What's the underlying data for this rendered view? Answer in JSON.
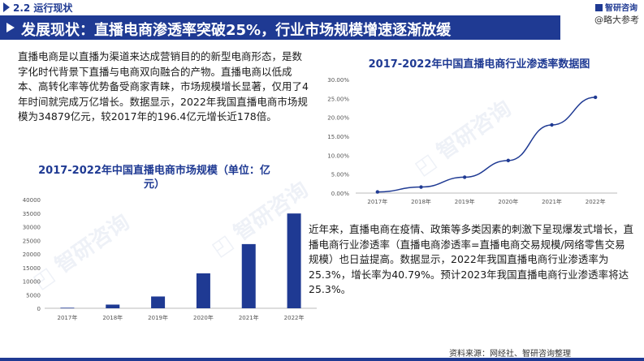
{
  "header": {
    "section": "2.2 运行现状",
    "title": "发展现状：直播电商渗透率突破25%，行业市场规模增速逐渐放缓",
    "watermark": "@略大参考",
    "brand": "智研咨询"
  },
  "intro_text": "直播电商是以直播为渠道来达成营销目的的新型电商形态，是数字化时代背景下直播与电商双向融合的产物。直播电商以低成本、高转化率等优势备受商家青睐，市场规模增长显著，仅用了4年时间就完成万亿增长。数据显示，2022年我国直播电商市场规模为34879亿元，较2017年的196.4亿元增长近178倍。",
  "detail_text": "近年来，直播电商在疫情、政策等多类因素的刺激下呈现爆发式增长，直播电商行业渗透率（直播电商渗透率=直播电商交易规模/网络零售交易规模）也日益提高。数据显示，2022年我国直播电商行业渗透率为25.3%，增长率为40.79%。预计2023年我国直播电商行业渗透率将达25.3%。",
  "source": "资料来源：网经社、智研咨询整理",
  "colors": {
    "primary": "#1f3a93",
    "bar": "#1f3a93",
    "line": "#1f3a93"
  },
  "chart_data": [
    {
      "type": "bar",
      "title": "2017-2022年中国直播电商市场规模（单位：亿元）",
      "categories": [
        "2017年",
        "2018年",
        "2019年",
        "2020年",
        "2021年",
        "2022年"
      ],
      "values": [
        196.4,
        1354,
        4338,
        12850,
        23615,
        34879
      ],
      "ylim": [
        0,
        40000
      ],
      "yticks": [
        0,
        5000,
        10000,
        15000,
        20000,
        25000,
        30000,
        35000,
        40000
      ],
      "xlabel": "",
      "ylabel": ""
    },
    {
      "type": "line",
      "title": "2017-2022年中国直播电商行业渗透率数据图",
      "categories": [
        "2017年",
        "2018年",
        "2019年",
        "2020年",
        "2021年",
        "2022年"
      ],
      "values": [
        0.3,
        1.6,
        4.2,
        8.6,
        18.0,
        25.3
      ],
      "ylim": [
        0,
        30
      ],
      "yticks": [
        "0.00%",
        "5.00%",
        "10.00%",
        "15.00%",
        "20.00%",
        "25.00%",
        "30.00%"
      ],
      "xlabel": "",
      "ylabel": ""
    }
  ]
}
